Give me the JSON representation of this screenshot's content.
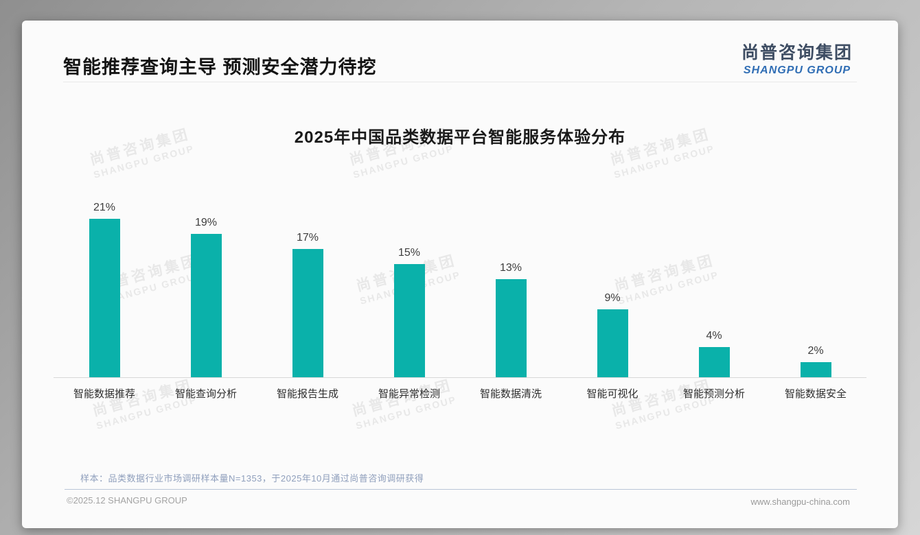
{
  "page": {
    "title": "智能推荐查询主导 预测安全潜力待挖",
    "logo": {
      "cn": "尚普咨询集团",
      "en": "SHANGPU GROUP"
    },
    "watermark": {
      "line1": "尚普咨询集团",
      "line2": "SHANGPU GROUP"
    },
    "note": "样本：品类数据行业市场调研样本量N=1353，于2025年10月通过尚普咨询调研获得",
    "footer": {
      "copyright": "©2025.12 SHANGPU GROUP",
      "website": "www.shangpu-china.com"
    }
  },
  "colors": {
    "bar": "#0AB1AA",
    "logo_cn": "#3E4D63",
    "logo_en": "#2F6DB4",
    "note_text": "#8F9FBC"
  },
  "chart_data": {
    "type": "bar",
    "title": "2025年中国品类数据平台智能服务体验分布",
    "categories": [
      "智能数据推荐",
      "智能查询分析",
      "智能报告生成",
      "智能异常检测",
      "智能数据清洗",
      "智能可视化",
      "智能预测分析",
      "智能数据安全"
    ],
    "values": [
      21,
      19,
      17,
      15,
      13,
      9,
      4,
      2
    ],
    "unit": "%",
    "xlabel": "",
    "ylabel": "",
    "ylim": [
      0,
      25
    ],
    "grid": false,
    "legend": false,
    "value_labels": true,
    "bar_color": "#0AB1AA"
  }
}
